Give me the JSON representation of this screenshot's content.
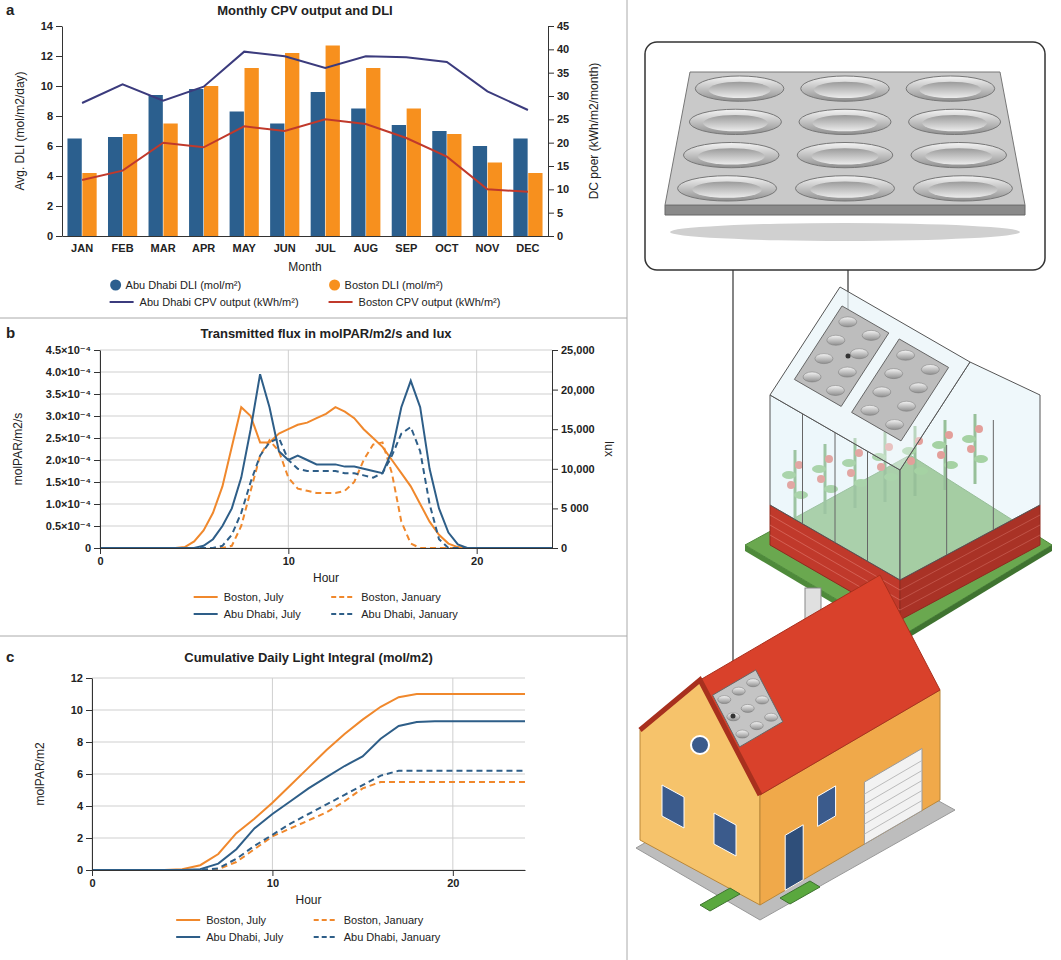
{
  "chart_data": [
    {
      "type": "bar",
      "panel_label": "a",
      "title": "Monthly CPV output and DLI",
      "x_label": "Month",
      "y_label": "Avg. DLI (mol/m2/day)",
      "y2_label": "DC poer (kWh/m2/month)",
      "categories": [
        "JAN",
        "FEB",
        "MAR",
        "APR",
        "MAY",
        "JUN",
        "JUL",
        "AUG",
        "SEP",
        "OCT",
        "NOV",
        "DEC"
      ],
      "ylim": [
        0,
        14
      ],
      "yticks": [
        0,
        2,
        4,
        6,
        8,
        10,
        12,
        14
      ],
      "y2lim": [
        0,
        45
      ],
      "y2ticks": [
        0,
        5,
        10,
        15,
        20,
        25,
        30,
        35,
        40,
        45
      ],
      "grid": false,
      "legend": "bottom",
      "series": [
        {
          "name": "Abu Dhabi DLI (mol/m²)",
          "color": "#2b5f8e",
          "marker": "circle",
          "values": [
            6.5,
            6.6,
            9.4,
            9.8,
            8.3,
            7.5,
            9.6,
            8.5,
            7.4,
            7.0,
            6.0,
            6.5
          ]
        },
        {
          "name": "Boston DLI (mol/m²)",
          "color": "#f7901e",
          "marker": "circle",
          "values": [
            4.2,
            6.8,
            7.5,
            10.0,
            11.2,
            12.2,
            12.7,
            11.2,
            8.5,
            6.8,
            4.9,
            4.2
          ]
        },
        {
          "name": "Abu Dhabi CPV output (kWh/m²)",
          "type": "line",
          "axis": "y2",
          "color": "#3b3b7d",
          "line_style": "solid",
          "values": [
            28.5,
            32.5,
            29,
            32,
            39.5,
            38.5,
            36,
            38.5,
            38.3,
            37.3,
            31,
            27
          ]
        },
        {
          "name": "Boston CPV output (kWh/m²)",
          "type": "line",
          "axis": "y2",
          "color": "#c0392b",
          "line_style": "solid",
          "values": [
            12,
            14,
            20,
            19,
            23.5,
            22.5,
            25,
            24,
            21,
            17,
            10,
            9.5
          ]
        }
      ]
    },
    {
      "type": "line",
      "panel_label": "b",
      "title": "Transmitted flux in molPAR/m2/s and lux",
      "x_label": "Hour",
      "y_label": "molPAR/m2/s",
      "y2_label": "lux",
      "x": [
        0,
        4,
        4.5,
        5,
        5.5,
        6,
        6.5,
        7,
        7.5,
        8,
        8.5,
        9,
        9.5,
        10,
        10.5,
        11,
        11.5,
        12,
        12.5,
        13,
        13.5,
        14,
        14.5,
        15,
        15.5,
        16,
        16.5,
        17,
        17.5,
        18,
        18.5,
        19,
        19.5,
        20,
        24
      ],
      "xlim": [
        0,
        24
      ],
      "xticks": [
        0,
        10,
        20
      ],
      "ylim": [
        0,
        0.00045
      ],
      "yticks": [
        0,
        {
          "value": 5e-05,
          "label": "0.5×10⁻⁴"
        },
        {
          "value": 0.0001,
          "label": "1.0×10⁻⁴"
        },
        {
          "value": 0.00015,
          "label": "1.5×10⁻⁴"
        },
        {
          "value": 0.0002,
          "label": "2.0×10⁻⁴"
        },
        {
          "value": 0.00025,
          "label": "2.5×10⁻⁴"
        },
        {
          "value": 0.0003,
          "label": "3.0×10⁻⁴"
        },
        {
          "value": 0.00035,
          "label": "3.5×10⁻⁴"
        },
        {
          "value": 0.0004,
          "label": "4.0×10⁻⁴"
        },
        {
          "value": 0.00045,
          "label": "4.5×10⁻⁴"
        }
      ],
      "y2lim": [
        0,
        25000
      ],
      "y2ticks": [
        0,
        {
          "value": 5000,
          "label": "5 000"
        },
        {
          "value": 10000,
          "label": "10,000"
        },
        {
          "value": 15000,
          "label": "15,000"
        },
        {
          "value": 20000,
          "label": "20,000"
        },
        {
          "value": 25000,
          "label": "25,000"
        }
      ],
      "grid": true,
      "legend": "bottom",
      "series": [
        {
          "name": "Boston, July",
          "color": "#f0882c",
          "line_style": "solid",
          "values": [
            0,
            0,
            2e-06,
            1.5e-05,
            4e-05,
            8e-05,
            0.00014,
            0.00023,
            0.00032,
            0.0003,
            0.00024,
            0.00024,
            0.00026,
            0.00027,
            0.00028,
            0.000285,
            0.000295,
            0.000305,
            0.00032,
            0.00031,
            0.000295,
            0.00027,
            0.00025,
            0.00023,
            0.0002,
            0.00017,
            0.00014,
            0.0001,
            6e-05,
            3e-05,
            1e-05,
            2e-06,
            0,
            0,
            0
          ]
        },
        {
          "name": "Boston, January",
          "color": "#f0882c",
          "line_style": "dashed",
          "values": [
            0,
            0,
            0,
            0,
            0,
            0,
            0,
            5e-06,
            5e-05,
            0.00013,
            0.00021,
            0.000245,
            0.00022,
            0.00016,
            0.000135,
            0.00013,
            0.000125,
            0.000125,
            0.000125,
            0.00013,
            0.00015,
            0.0002,
            0.000235,
            0.00024,
            0.00017,
            6e-05,
            1e-05,
            0,
            0,
            0,
            0,
            0,
            0,
            0,
            0
          ]
        },
        {
          "name": "Abu Dhabi, July",
          "color": "#2e5e88",
          "line_style": "solid",
          "values": [
            0,
            0,
            0,
            0,
            5e-06,
            2e-05,
            5e-05,
            9e-05,
            0.00016,
            0.00027,
            0.000395,
            0.00032,
            0.00022,
            0.0002,
            0.00021,
            0.0002,
            0.00019,
            0.00019,
            0.00019,
            0.000185,
            0.000185,
            0.00018,
            0.000175,
            0.00017,
            0.00022,
            0.00032,
            0.00038,
            0.00032,
            0.00018,
            9e-05,
            3.5e-05,
            8e-06,
            0,
            0,
            0
          ]
        },
        {
          "name": "Abu Dhabi, January",
          "color": "#2e5e88",
          "line_style": "dashed",
          "values": [
            0,
            0,
            0,
            0,
            0,
            0,
            5e-06,
            3e-05,
            8e-05,
            0.00015,
            0.00021,
            0.00024,
            0.00025,
            0.0002,
            0.00018,
            0.000175,
            0.000175,
            0.000175,
            0.000175,
            0.00017,
            0.00017,
            0.000165,
            0.00016,
            0.00017,
            0.00021,
            0.00026,
            0.000275,
            0.00022,
            0.0001,
            2e-05,
            0,
            0,
            0,
            0,
            0
          ]
        }
      ]
    },
    {
      "type": "line",
      "panel_label": "c",
      "title": "Cumulative Daily Light Integral (mol/m2)",
      "x_label": "Hour",
      "y_label": "molPAR/m2",
      "x": [
        0,
        4,
        5,
        6,
        7,
        8,
        9,
        10,
        11,
        12,
        13,
        14,
        15,
        16,
        17,
        18,
        19,
        20,
        24
      ],
      "xlim": [
        0,
        24
      ],
      "xticks": [
        0,
        10,
        20
      ],
      "ylim": [
        0,
        12
      ],
      "yticks": [
        0,
        2,
        4,
        6,
        8,
        10,
        12
      ],
      "grid": true,
      "legend": "bottom",
      "series": [
        {
          "name": "Boston, July",
          "color": "#f0882c",
          "line_style": "solid",
          "values": [
            0,
            0,
            0.05,
            0.3,
            1.0,
            2.3,
            3.2,
            4.2,
            5.3,
            6.4,
            7.5,
            8.5,
            9.4,
            10.2,
            10.8,
            11.0,
            11.0,
            11.0,
            11.0
          ]
        },
        {
          "name": "Boston, January",
          "color": "#f0882c",
          "line_style": "dashed",
          "values": [
            0,
            0,
            0,
            0,
            0.05,
            0.5,
            1.3,
            2.1,
            2.6,
            3.1,
            3.6,
            4.3,
            5.1,
            5.5,
            5.5,
            5.5,
            5.5,
            5.5,
            5.5
          ]
        },
        {
          "name": "Abu Dhabi, July",
          "color": "#2e5e88",
          "line_style": "solid",
          "values": [
            0,
            0,
            0,
            0.05,
            0.4,
            1.3,
            2.6,
            3.5,
            4.3,
            5.1,
            5.8,
            6.5,
            7.1,
            8.2,
            9.0,
            9.25,
            9.3,
            9.3,
            9.3
          ]
        },
        {
          "name": "Abu Dhabi, January",
          "color": "#2e5e88",
          "line_style": "dashed",
          "values": [
            0,
            0,
            0,
            0,
            0.1,
            0.7,
            1.5,
            2.2,
            2.9,
            3.5,
            4.1,
            4.7,
            5.3,
            5.9,
            6.2,
            6.2,
            6.2,
            6.2,
            6.2
          ]
        }
      ]
    }
  ]
}
